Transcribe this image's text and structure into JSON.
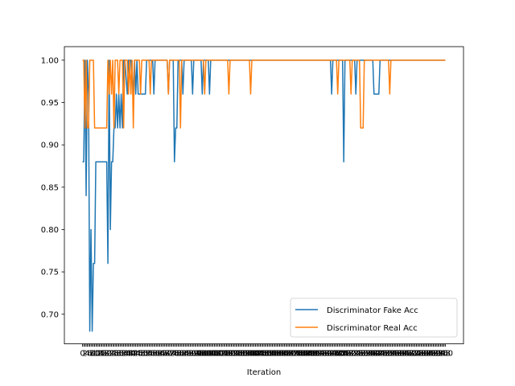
{
  "chart_data": {
    "type": "line",
    "title": "",
    "xlabel": "Iteration",
    "ylabel": "",
    "xlim": [
      0,
      300
    ],
    "ylim": [
      0.665,
      1.016
    ],
    "yticks": [
      0.7,
      0.75,
      0.8,
      0.85,
      0.9,
      0.95,
      1.0
    ],
    "ytick_labels": [
      "0.70",
      "0.75",
      "0.80",
      "0.85",
      "0.90",
      "0.95",
      "1.00"
    ],
    "grid": false,
    "legend_position": "lower-right",
    "series": [
      {
        "name": "Discriminator Fake Acc",
        "color": "#1f77b4",
        "points": [
          [
            0,
            0.88
          ],
          [
            1,
            0.88
          ],
          [
            2,
            1.0
          ],
          [
            3,
            0.84
          ],
          [
            4,
            1.0
          ],
          [
            5,
            0.96
          ],
          [
            6,
            0.68
          ],
          [
            7,
            0.8
          ],
          [
            8,
            0.68
          ],
          [
            9,
            0.76
          ],
          [
            10,
            0.76
          ],
          [
            11,
            0.88
          ],
          [
            14,
            0.88
          ],
          [
            17,
            0.88
          ],
          [
            20,
            0.88
          ],
          [
            21,
            0.76
          ],
          [
            22,
            1.0
          ],
          [
            23,
            0.8
          ],
          [
            24,
            0.88
          ],
          [
            25,
            0.88
          ],
          [
            26,
            0.92
          ],
          [
            27,
            0.92
          ],
          [
            28,
            0.96
          ],
          [
            29,
            0.92
          ],
          [
            30,
            0.96
          ],
          [
            31,
            0.92
          ],
          [
            32,
            0.96
          ],
          [
            33,
            0.92
          ],
          [
            34,
            1.0
          ],
          [
            35,
            1.0
          ],
          [
            37,
            0.96
          ],
          [
            38,
            1.0
          ],
          [
            40,
            1.0
          ],
          [
            42,
            0.96
          ],
          [
            43,
            1.0
          ],
          [
            44,
            0.96
          ],
          [
            45,
            1.0
          ],
          [
            46,
            0.96
          ],
          [
            52,
            0.96
          ],
          [
            53,
            1.0
          ],
          [
            58,
            1.0
          ],
          [
            59,
            0.96
          ],
          [
            60,
            1.0
          ],
          [
            70,
            1.0
          ],
          [
            71,
            0.96
          ],
          [
            72,
            1.0
          ],
          [
            75,
            1.0
          ],
          [
            76,
            0.88
          ],
          [
            77,
            0.92
          ],
          [
            78,
            0.92
          ],
          [
            79,
            1.0
          ],
          [
            82,
            1.0
          ],
          [
            83,
            0.96
          ],
          [
            84,
            1.0
          ],
          [
            90,
            1.0
          ],
          [
            91,
            0.96
          ],
          [
            92,
            1.0
          ],
          [
            98,
            1.0
          ],
          [
            99,
            0.96
          ],
          [
            100,
            1.0
          ],
          [
            104,
            1.0
          ],
          [
            105,
            0.96
          ],
          [
            106,
            1.0
          ],
          [
            150,
            1.0
          ],
          [
            205,
            1.0
          ],
          [
            206,
            0.96
          ],
          [
            207,
            1.0
          ],
          [
            215,
            1.0
          ],
          [
            216,
            0.88
          ],
          [
            217,
            1.0
          ],
          [
            225,
            1.0
          ],
          [
            226,
            0.96
          ],
          [
            227,
            1.0
          ],
          [
            240,
            1.0
          ],
          [
            241,
            0.96
          ],
          [
            245,
            0.96
          ],
          [
            246,
            1.0
          ],
          [
            300,
            1.0
          ]
        ]
      },
      {
        "name": "Discriminator Real Acc",
        "color": "#ff7f0e",
        "points": [
          [
            0,
            1.0
          ],
          [
            1,
            1.0
          ],
          [
            2,
            0.92
          ],
          [
            3,
            1.0
          ],
          [
            4,
            0.92
          ],
          [
            5,
            0.92
          ],
          [
            6,
            1.0
          ],
          [
            8,
            1.0
          ],
          [
            9,
            1.0
          ],
          [
            10,
            0.92
          ],
          [
            20,
            0.92
          ],
          [
            21,
            1.0
          ],
          [
            22,
            0.96
          ],
          [
            23,
            1.0
          ],
          [
            24,
            0.96
          ],
          [
            25,
            1.0
          ],
          [
            26,
            0.92
          ],
          [
            27,
            1.0
          ],
          [
            29,
            1.0
          ],
          [
            30,
            0.96
          ],
          [
            31,
            1.0
          ],
          [
            33,
            1.0
          ],
          [
            34,
            0.92
          ],
          [
            35,
            1.0
          ],
          [
            37,
            1.0
          ],
          [
            38,
            0.96
          ],
          [
            39,
            1.0
          ],
          [
            40,
            0.96
          ],
          [
            41,
            1.0
          ],
          [
            42,
            0.92
          ],
          [
            43,
            1.0
          ],
          [
            47,
            1.0
          ],
          [
            48,
            0.96
          ],
          [
            49,
            1.0
          ],
          [
            55,
            1.0
          ],
          [
            56,
            0.96
          ],
          [
            57,
            1.0
          ],
          [
            70,
            1.0
          ],
          [
            71,
            0.96
          ],
          [
            72,
            1.0
          ],
          [
            80,
            1.0
          ],
          [
            81,
            0.92
          ],
          [
            82,
            1.0
          ],
          [
            100,
            1.0
          ],
          [
            101,
            0.96
          ],
          [
            102,
            1.0
          ],
          [
            120,
            1.0
          ],
          [
            121,
            0.96
          ],
          [
            122,
            1.0
          ],
          [
            138,
            1.0
          ],
          [
            139,
            0.96
          ],
          [
            140,
            1.0
          ],
          [
            210,
            1.0
          ],
          [
            211,
            0.96
          ],
          [
            212,
            1.0
          ],
          [
            221,
            1.0
          ],
          [
            222,
            0.96
          ],
          [
            223,
            1.0
          ],
          [
            229,
            1.0
          ],
          [
            230,
            0.92
          ],
          [
            232,
            0.92
          ],
          [
            233,
            1.0
          ],
          [
            253,
            1.0
          ],
          [
            254,
            0.96
          ],
          [
            255,
            1.0
          ],
          [
            300,
            1.0
          ]
        ]
      }
    ]
  }
}
